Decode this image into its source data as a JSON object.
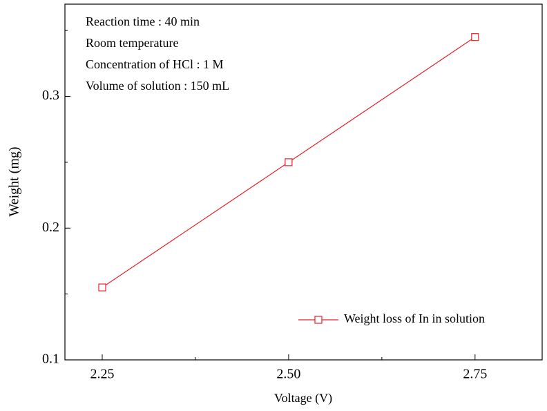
{
  "chart_data": {
    "type": "line",
    "x_label": "Voltage (V)",
    "y_label": "Weight  (mg)",
    "annotations": [
      "Reaction time : 40 min",
      "Room temperature",
      "Concentration of HCl : 1 M",
      "Volume of solution : 150 mL"
    ],
    "x": [
      2.25,
      2.5,
      2.75
    ],
    "series": [
      {
        "name": "Weight loss of In in solution",
        "color": "#e8202a",
        "values": [
          0.155,
          0.25,
          0.345
        ]
      }
    ],
    "xlim": [
      2.2,
      2.84
    ],
    "ylim": [
      0.1,
      0.37
    ],
    "xticks": [
      2.25,
      {
        "value": 2.5,
        "label": "2.50"
      },
      2.75
    ],
    "yticks": [
      0.1,
      0.2,
      0.3
    ],
    "xminor": [
      2.375,
      2.625
    ],
    "yminor": [
      0.15,
      0.25,
      0.35
    ],
    "marker": "open-square",
    "legend": "lower right",
    "grid": false
  }
}
